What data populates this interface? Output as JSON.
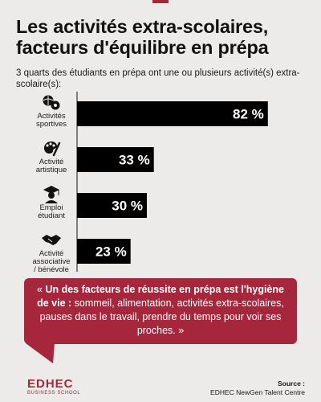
{
  "title": "Les activités extra-scolaires, facteurs d'équilibre en prépa",
  "subtitle": "3 quarts des étudiants en prépa ont une ou plusieurs activité(s) extra-scolaire(s):",
  "accent_color": "#a6263b",
  "bar_color": "#000000",
  "chart_data": {
    "type": "bar",
    "orientation": "horizontal",
    "categories": [
      {
        "lines": [
          "Activités",
          "sportives"
        ],
        "icon": "sports-balls-icon"
      },
      {
        "lines": [
          "Activité",
          "artistique"
        ],
        "icon": "art-palette-icon"
      },
      {
        "lines": [
          "Emploi",
          "étudiant"
        ],
        "icon": "graduate-icon"
      },
      {
        "lines": [
          "Activité",
          "associative",
          "/ bénévole"
        ],
        "icon": "handshake-icon"
      }
    ],
    "values": [
      82,
      33,
      30,
      23
    ],
    "value_labels": [
      "82 %",
      "33 %",
      "30 %",
      "23 %"
    ],
    "unit": "%",
    "xlim": [
      0,
      100
    ],
    "grid": false,
    "legend": "none"
  },
  "quote": {
    "open": "« ",
    "bold": "Un des facteurs de réussite en prépa est l'hygiène de vie :",
    "rest": " sommeil, alimentation, activités extra-scolaires, pauses dans le travail, prendre du temps pour voir ses proches. »"
  },
  "logo": {
    "name": "EDHEC",
    "sub": "BUSINESS SCHOOL"
  },
  "source": {
    "title": "Source :",
    "text": "EDHEC NewGen Talent Centre"
  }
}
